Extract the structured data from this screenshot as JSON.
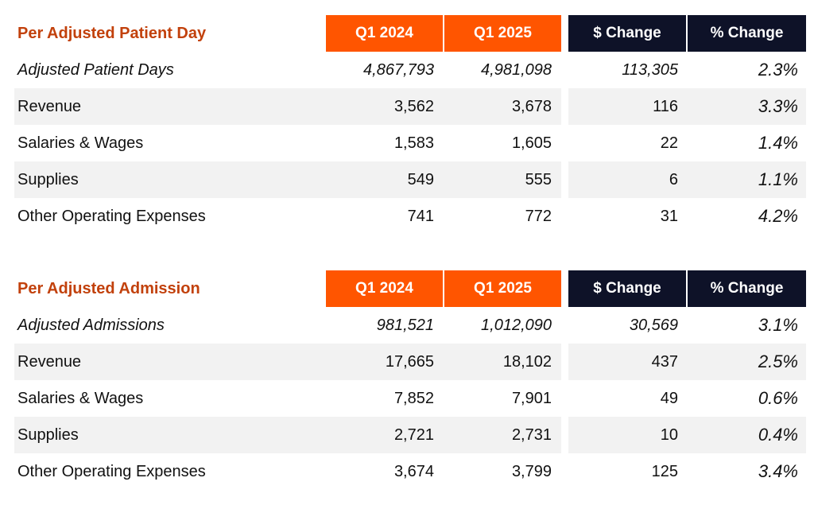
{
  "table1": {
    "title": "Per Adjusted Patient Day",
    "headers": {
      "q1_2024": "Q1 2024",
      "q1_2025": "Q1 2025",
      "change": "$ Change",
      "pct_change": "% Change"
    },
    "rows": [
      {
        "label": "Adjusted Patient Days",
        "q1_2024": "4,867,793",
        "q1_2025": "4,981,098",
        "change": "113,305",
        "pct": "2.3%"
      },
      {
        "label": "Revenue",
        "q1_2024": "3,562",
        "q1_2025": "3,678",
        "change": "116",
        "pct": "3.3%"
      },
      {
        "label": "Salaries & Wages",
        "q1_2024": "1,583",
        "q1_2025": "1,605",
        "change": "22",
        "pct": "1.4%"
      },
      {
        "label": "Supplies",
        "q1_2024": "549",
        "q1_2025": "555",
        "change": "6",
        "pct": "1.1%"
      },
      {
        "label": "Other Operating Expenses",
        "q1_2024": "741",
        "q1_2025": "772",
        "change": "31",
        "pct": "4.2%"
      }
    ]
  },
  "table2": {
    "title": "Per Adjusted Admission",
    "headers": {
      "q1_2024": "Q1 2024",
      "q1_2025": "Q1 2025",
      "change": "$ Change",
      "pct_change": "% Change"
    },
    "rows": [
      {
        "label": "Adjusted Admissions",
        "q1_2024": "981,521",
        "q1_2025": "1,012,090",
        "change": "30,569",
        "pct": "3.1%"
      },
      {
        "label": "Revenue",
        "q1_2024": "17,665",
        "q1_2025": "18,102",
        "change": "437",
        "pct": "2.5%"
      },
      {
        "label": "Salaries & Wages",
        "q1_2024": "7,852",
        "q1_2025": "7,901",
        "change": "49",
        "pct": "0.6%"
      },
      {
        "label": "Supplies",
        "q1_2024": "2,721",
        "q1_2025": "2,731",
        "change": "10",
        "pct": "0.4%"
      },
      {
        "label": "Other Operating Expenses",
        "q1_2024": "3,674",
        "q1_2025": "3,799",
        "change": "125",
        "pct": "3.4%"
      }
    ]
  },
  "colors": {
    "title_text": "#c2410c",
    "header_orange": "#ff5500",
    "header_navy": "#0e1228",
    "row_shade": "#f2f2f2"
  }
}
